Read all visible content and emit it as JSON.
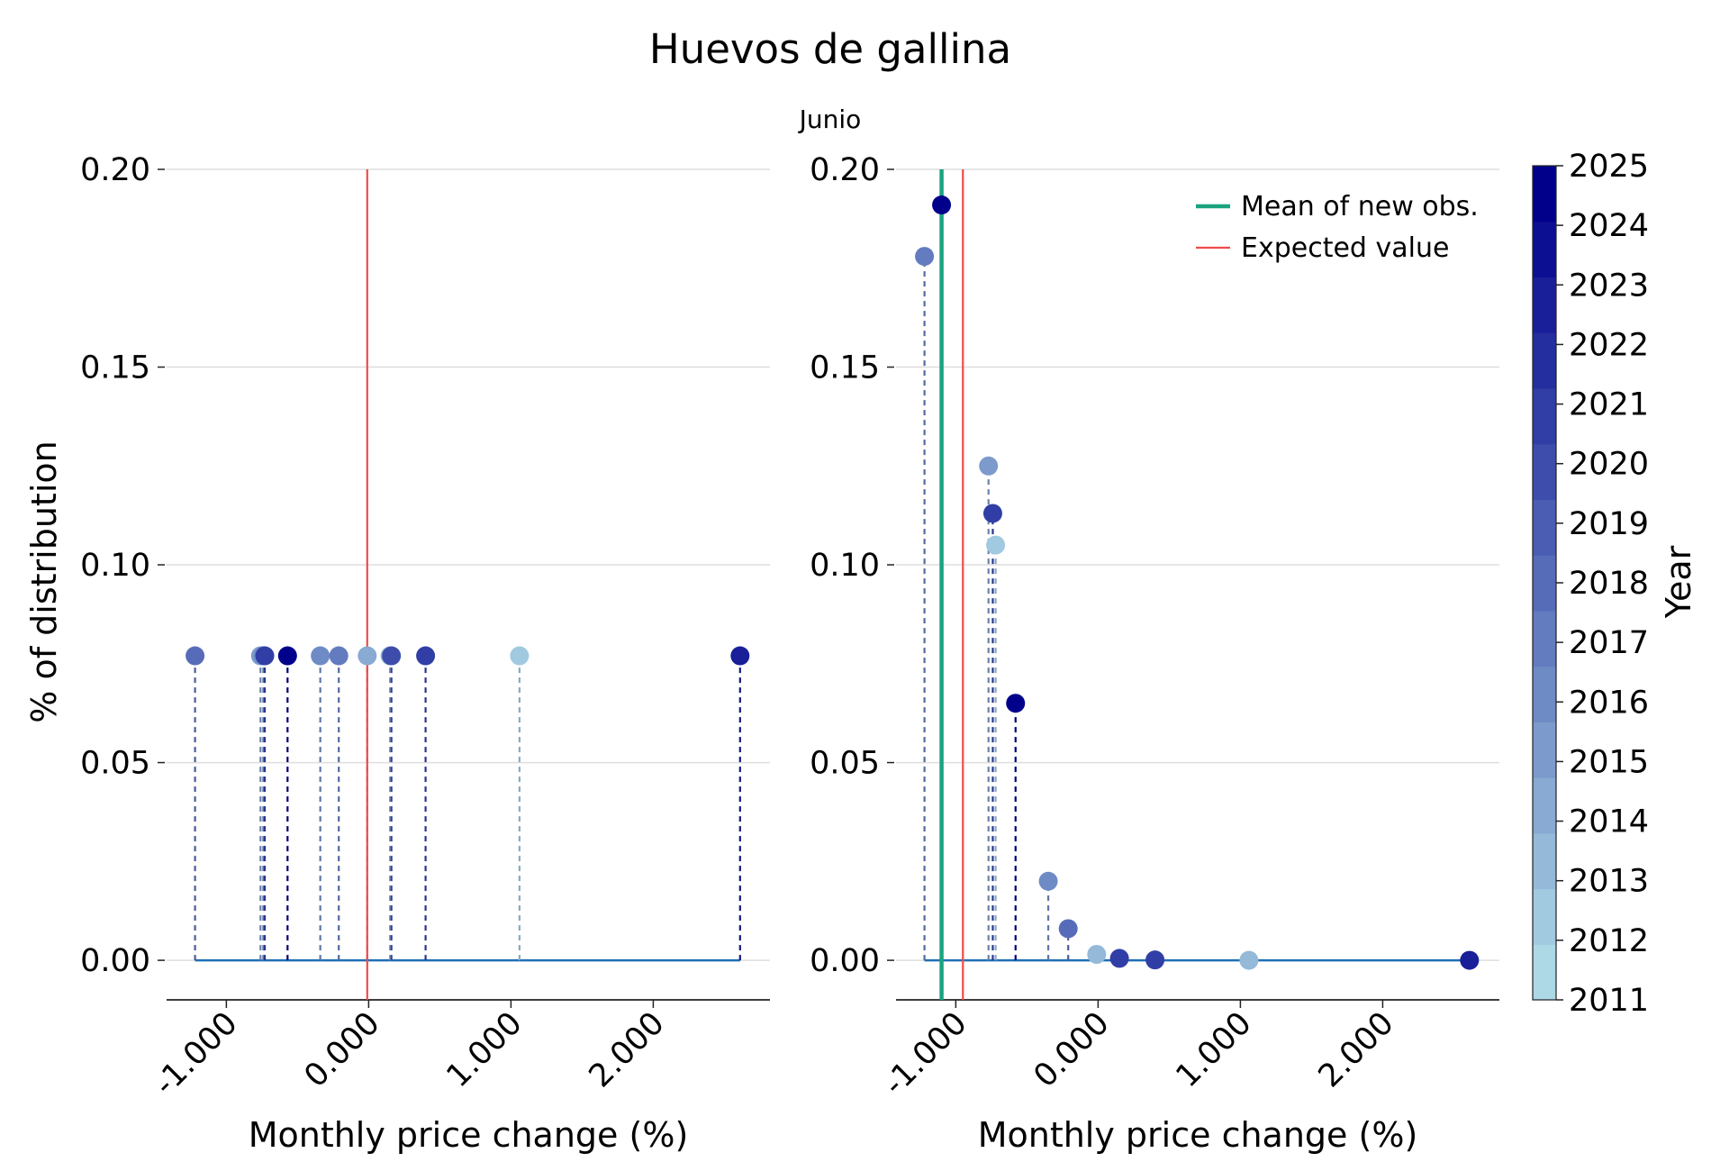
{
  "chart_data": {
    "type": "scatter",
    "title": "Huevos de gallina",
    "subplot_subtitle": "Junio",
    "xlabel": "Monthly price change (%)",
    "ylabel": "% of distribution",
    "xlim": [
      -1.42,
      2.82
    ],
    "ylim": [
      -0.01,
      0.2
    ],
    "x_ticks": [
      -1.0,
      0.0,
      1.0,
      2.0
    ],
    "x_tick_labels": [
      "-1.000",
      "0.000",
      "1.000",
      "2.000"
    ],
    "y_ticks": [
      0.0,
      0.05,
      0.1,
      0.15,
      0.2
    ],
    "y_tick_labels": [
      "0.00",
      "0.05",
      "0.10",
      "0.15",
      "0.20"
    ],
    "grid": "horizontal",
    "legend": {
      "placement": "top-right",
      "entries": [
        {
          "label": "Mean of new obs.",
          "color": "#1aa37f"
        },
        {
          "label": "Expected value",
          "color": "#f04b4b"
        }
      ]
    },
    "colorbar": {
      "label": "Year",
      "min": 2011,
      "max": 2025,
      "tick_labels": [
        "2011",
        "2012",
        "2013",
        "2014",
        "2015",
        "2016",
        "2017",
        "2018",
        "2019",
        "2020",
        "2021",
        "2022",
        "2023",
        "2024",
        "2025"
      ],
      "color_low": "#add8e6",
      "color_high": "#00008b"
    },
    "panels": [
      {
        "name": "left",
        "expected_value": -0.01,
        "points": [
          {
            "x": -1.22,
            "y": 0.077,
            "year": 2018
          },
          {
            "x": -0.76,
            "y": 0.077,
            "year": 2015
          },
          {
            "x": -0.74,
            "y": 0.077,
            "year": 2016
          },
          {
            "x": -0.73,
            "y": 0.077,
            "year": 2021
          },
          {
            "x": -0.57,
            "y": 0.077,
            "year": 2025
          },
          {
            "x": -0.34,
            "y": 0.077,
            "year": 2016
          },
          {
            "x": -0.21,
            "y": 0.077,
            "year": 2017
          },
          {
            "x": -0.01,
            "y": 0.077,
            "year": 2014
          },
          {
            "x": 0.15,
            "y": 0.077,
            "year": 2013
          },
          {
            "x": 0.16,
            "y": 0.077,
            "year": 2020
          },
          {
            "x": 0.4,
            "y": 0.077,
            "year": 2021
          },
          {
            "x": 1.06,
            "y": 0.077,
            "year": 2012
          },
          {
            "x": 2.61,
            "y": 0.077,
            "year": 2023
          }
        ]
      },
      {
        "name": "right",
        "expected_value": -0.95,
        "mean_new_obs": -1.1,
        "points": [
          {
            "x": -1.22,
            "y": 0.178,
            "year": 2017
          },
          {
            "x": -1.1,
            "y": 0.191,
            "year": 2025
          },
          {
            "x": -0.77,
            "y": 0.125,
            "year": 2015
          },
          {
            "x": -0.74,
            "y": 0.113,
            "year": 2021
          },
          {
            "x": -0.72,
            "y": 0.105,
            "year": 2012
          },
          {
            "x": -0.58,
            "y": 0.065,
            "year": 2025
          },
          {
            "x": -0.35,
            "y": 0.02,
            "year": 2016
          },
          {
            "x": -0.21,
            "y": 0.008,
            "year": 2018
          },
          {
            "x": -0.01,
            "y": 0.0015,
            "year": 2013
          },
          {
            "x": 0.15,
            "y": 0.0005,
            "year": 2021
          },
          {
            "x": 0.4,
            "y": 0.0001,
            "year": 2021
          },
          {
            "x": 1.06,
            "y": 0.0,
            "year": 2013
          },
          {
            "x": 2.61,
            "y": 0.0,
            "year": 2023
          }
        ]
      }
    ]
  }
}
